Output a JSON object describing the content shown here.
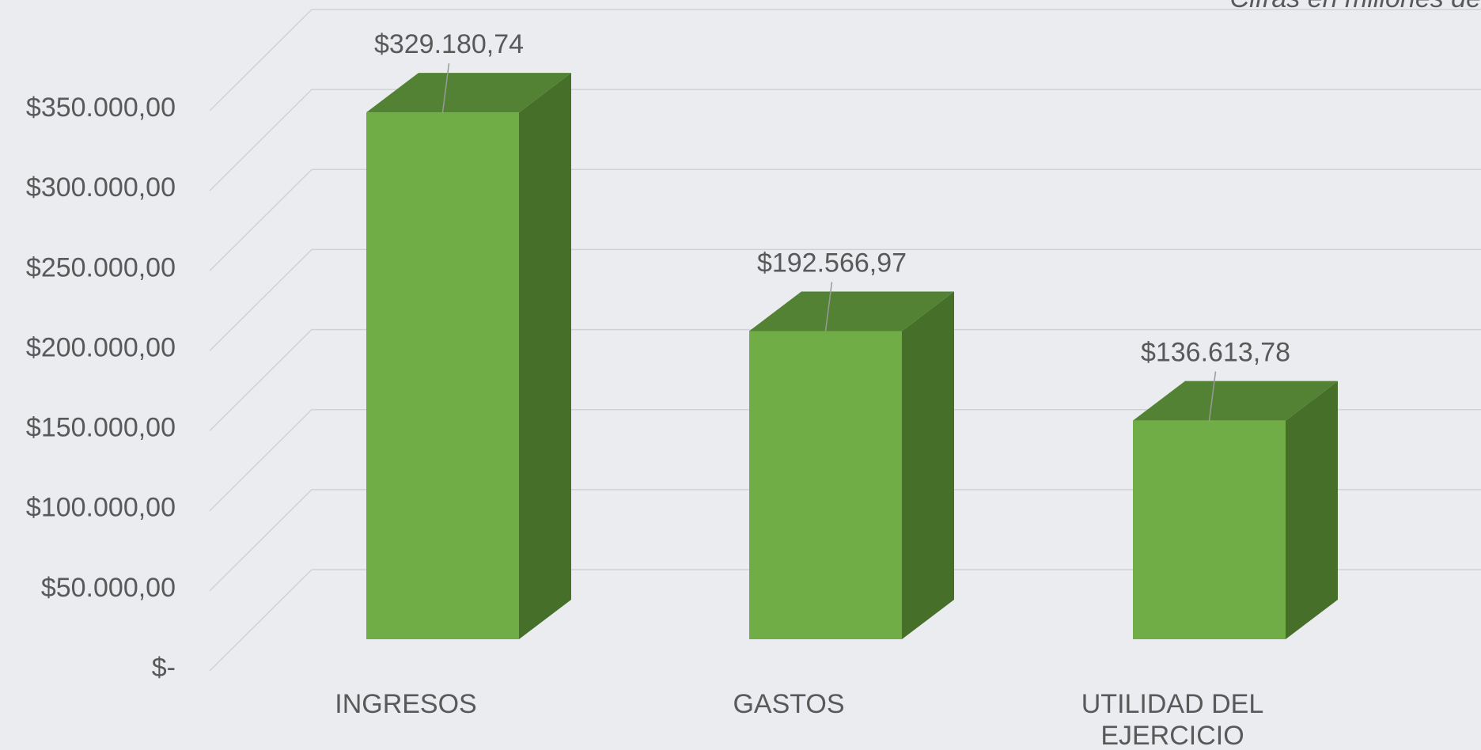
{
  "chart_data": {
    "type": "bar3d",
    "subtitle": "Cifras en millones de",
    "categories": [
      "INGRESOS",
      "GASTOS",
      "UTILIDAD DEL EJERCICIO"
    ],
    "values": [
      329180.74,
      192566.97,
      136613.78
    ],
    "value_labels": [
      "$329.180,74",
      "$192.566,97",
      "$136.613,78"
    ],
    "color": "#70ad47",
    "ylim": [
      0,
      350000
    ],
    "yticks": [
      {
        "value": 0,
        "label": "$-"
      },
      {
        "value": 50000,
        "label": "$50.000,00"
      },
      {
        "value": 100000,
        "label": "$100.000,00"
      },
      {
        "value": 150000,
        "label": "$150.000,00"
      },
      {
        "value": 200000,
        "label": "$200.000,00"
      },
      {
        "value": 250000,
        "label": "$250.000,00"
      },
      {
        "value": 300000,
        "label": "$300.000,00"
      },
      {
        "value": 350000,
        "label": "$350.000,00"
      }
    ],
    "grid": true
  }
}
